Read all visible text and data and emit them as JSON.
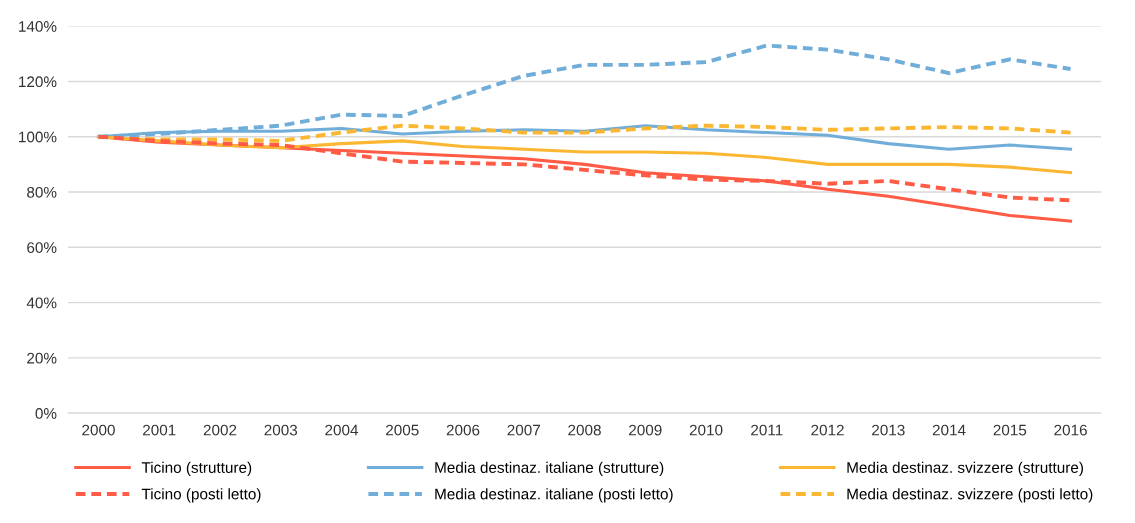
{
  "chart_data": {
    "type": "line",
    "categories": [
      "2000",
      "2001",
      "2002",
      "2003",
      "2004",
      "2005",
      "2006",
      "2007",
      "2008",
      "2009",
      "2010",
      "2011",
      "2012",
      "2013",
      "2014",
      "2015",
      "2016"
    ],
    "ylim": [
      0,
      140
    ],
    "yticks": [
      {
        "value": 0,
        "label": "0%"
      },
      {
        "value": 20,
        "label": "20%"
      },
      {
        "value": 40,
        "label": "40%"
      },
      {
        "value": 60,
        "label": "60%"
      },
      {
        "value": 80,
        "label": "80%"
      },
      {
        "value": 100,
        "label": "100%"
      },
      {
        "value": 120,
        "label": "120%"
      },
      {
        "value": 140,
        "label": "140%"
      }
    ],
    "grid": "y",
    "legend": "bottom",
    "marker": "none",
    "series": [
      {
        "name": "Ticino (strutture)",
        "color": "#ff5b45",
        "line_style": "solid",
        "values": [
          100,
          98,
          97,
          96,
          95,
          94,
          93,
          92,
          90,
          87,
          85.5,
          84,
          81,
          78.5,
          75,
          71.5,
          69.5
        ]
      },
      {
        "name": "Media destinaz. italiane (strutture)",
        "color": "#70add9",
        "line_style": "solid",
        "values": [
          100,
          101.5,
          102,
          102,
          103,
          101,
          102,
          102.5,
          102,
          104,
          102.5,
          101.5,
          100.5,
          97.5,
          95.5,
          97,
          95.5
        ]
      },
      {
        "name": "Media destinaz. svizzere (strutture)",
        "color": "#fbb731",
        "line_style": "solid",
        "values": [
          100,
          98.5,
          97,
          96,
          97.5,
          98.5,
          96.5,
          95.5,
          94.5,
          94.5,
          94,
          92.5,
          90,
          90,
          90,
          89,
          87
        ]
      },
      {
        "name": "Ticino (posti letto)",
        "color": "#ff5b45",
        "line_style": "dashed",
        "values": [
          100,
          98.5,
          97.5,
          97,
          94,
          91,
          90.5,
          90,
          88,
          86,
          84.5,
          84,
          83,
          84,
          81,
          78,
          77
        ]
      },
      {
        "name": "Media destinaz. italiane (posti letto)",
        "color": "#70add9",
        "line_style": "dashed",
        "values": [
          100,
          101,
          102.5,
          104,
          108,
          107.5,
          115,
          122,
          126,
          126,
          127,
          133,
          131.5,
          128,
          123,
          128,
          124.5
        ]
      },
      {
        "name": "Media destinaz. svizzere (posti letto)",
        "color": "#fbb731",
        "line_style": "dashed",
        "values": [
          100,
          99,
          99,
          98.5,
          101.5,
          104,
          103,
          101.5,
          101.5,
          103,
          104,
          103.5,
          102.5,
          103,
          103.5,
          103,
          101.5
        ]
      }
    ]
  }
}
